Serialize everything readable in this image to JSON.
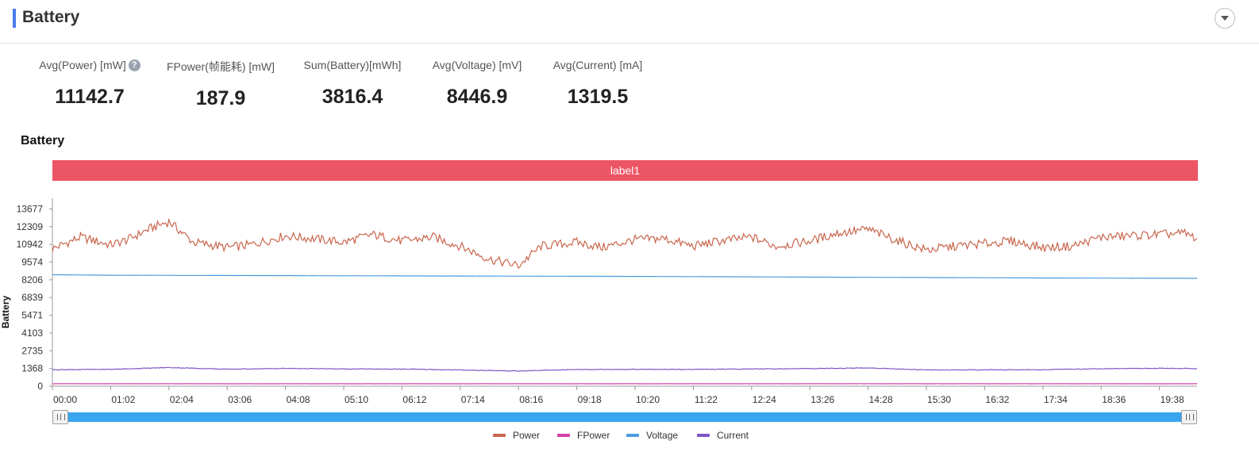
{
  "header": {
    "title": "Battery",
    "accent_color": "#4b7bea",
    "collapse_icon": "chevron-down-icon"
  },
  "metrics": [
    {
      "label": "Avg(Power) [mW]",
      "value": "11142.7",
      "help": true
    },
    {
      "label": "FPower(帧能耗) [mW]",
      "value": "187.9"
    },
    {
      "label": "Sum(Battery)[mWh]",
      "value": "3816.4"
    },
    {
      "label": "Avg(Voltage) [mV]",
      "value": "8446.9"
    },
    {
      "label": "Avg(Current) [mA]",
      "value": "1319.5"
    }
  ],
  "help_icon_text": "?",
  "chart_title": "Battery",
  "label_band": {
    "text": "label1",
    "color": "#ec5565"
  },
  "chart_data": {
    "type": "line",
    "title": "Battery",
    "ylabel": "Battery",
    "xlabel": "",
    "ylim": [
      0,
      14500
    ],
    "yticks": [
      0,
      1368,
      2735,
      4103,
      5471,
      6839,
      8206,
      9574,
      10942,
      12309,
      13677
    ],
    "x_ticks": [
      "00:00",
      "01:02",
      "02:04",
      "03:06",
      "04:08",
      "05:10",
      "06:12",
      "07:14",
      "08:16",
      "09:18",
      "10:20",
      "11:22",
      "12:24",
      "13:26",
      "14:28",
      "15:30",
      "16:32",
      "17:34",
      "18:36",
      "19:38"
    ],
    "x_range": [
      "00:00",
      "20:18"
    ],
    "series": [
      {
        "name": "Power",
        "color": "#c8664d",
        "x": [
          "00:00",
          "00:30",
          "01:02",
          "01:20",
          "01:45",
          "02:04",
          "02:30",
          "03:06",
          "03:30",
          "04:08",
          "04:35",
          "05:10",
          "05:40",
          "06:12",
          "06:45",
          "07:14",
          "07:45",
          "08:16",
          "08:40",
          "09:18",
          "09:45",
          "10:20",
          "10:50",
          "11:22",
          "11:50",
          "12:24",
          "12:50",
          "13:26",
          "13:55",
          "14:28",
          "15:00",
          "15:30",
          "16:00",
          "16:32",
          "17:00",
          "17:34",
          "18:05",
          "18:36",
          "19:05",
          "19:38",
          "20:05",
          "20:18"
        ],
        "values": [
          10600,
          11500,
          10900,
          11300,
          12200,
          12700,
          11100,
          10700,
          10900,
          11600,
          11400,
          11100,
          11700,
          11200,
          11500,
          10800,
          9800,
          9300,
          10800,
          11100,
          10700,
          11300,
          11400,
          10800,
          11200,
          11500,
          10800,
          11200,
          11800,
          12100,
          11200,
          10500,
          10800,
          11000,
          11200,
          10700,
          10800,
          11500,
          11600,
          11700,
          11800,
          11400
        ]
      },
      {
        "name": "FPower",
        "color": "#d23fa7",
        "x": [
          "00:00",
          "05:10",
          "10:20",
          "15:30",
          "20:18"
        ],
        "values": [
          190,
          186,
          188,
          189,
          187
        ]
      },
      {
        "name": "Voltage",
        "color": "#4a9be0",
        "x": [
          "00:00",
          "01:02",
          "03:06",
          "06:12",
          "10:20",
          "14:28",
          "17:34",
          "20:18"
        ],
        "values": [
          8600,
          8560,
          8540,
          8510,
          8470,
          8400,
          8350,
          8320
        ]
      },
      {
        "name": "Current",
        "color": "#7f55c9",
        "x": [
          "00:00",
          "01:02",
          "02:04",
          "03:06",
          "04:08",
          "05:10",
          "06:12",
          "07:14",
          "08:16",
          "09:18",
          "10:20",
          "11:22",
          "12:24",
          "13:26",
          "14:28",
          "15:30",
          "16:32",
          "17:34",
          "18:36",
          "19:38",
          "20:18"
        ],
        "values": [
          1270,
          1300,
          1440,
          1310,
          1370,
          1330,
          1320,
          1250,
          1170,
          1290,
          1300,
          1290,
          1330,
          1360,
          1410,
          1250,
          1260,
          1270,
          1350,
          1380,
          1360
        ]
      }
    ],
    "legend_position": "bottom-center",
    "grid": false
  },
  "legend": [
    {
      "name": "Power",
      "color": "#c8664d"
    },
    {
      "name": "FPower",
      "color": "#d23fa7"
    },
    {
      "name": "Voltage",
      "color": "#4a9be0"
    },
    {
      "name": "Current",
      "color": "#7f55c9"
    }
  ],
  "slider": {
    "start": 0,
    "end": 1,
    "color": "#39a5ef"
  }
}
